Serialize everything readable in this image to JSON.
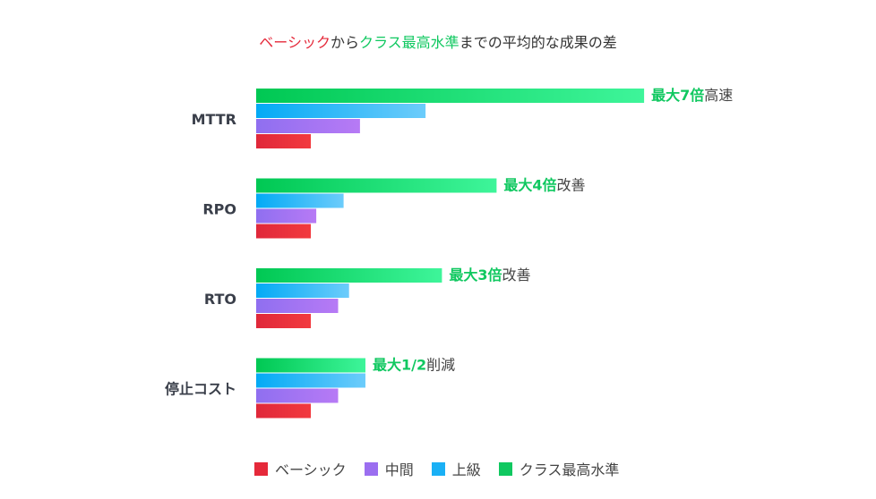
{
  "title": {
    "part1": "ベーシック",
    "part2": "から",
    "part3": "クラス最高水準",
    "part4": "までの平均的な成果の差"
  },
  "chart_data": {
    "type": "bar",
    "orientation": "horizontal",
    "categories": [
      "MTTR",
      "RPO",
      "RTO",
      "停止コスト"
    ],
    "series": [
      {
        "name": "クラス最高水準",
        "color": "#10c860",
        "values": [
          7.1,
          4.4,
          3.4,
          2.0
        ]
      },
      {
        "name": "上級",
        "color": "#1ab0f5",
        "values": [
          3.1,
          1.6,
          1.7,
          2.0
        ]
      },
      {
        "name": "中間",
        "color": "#9b6ef0",
        "values": [
          1.9,
          1.1,
          1.5,
          1.5
        ]
      },
      {
        "name": "ベーシック",
        "color": "#e5293a",
        "values": [
          1,
          1,
          1,
          1
        ]
      }
    ],
    "annotations": [
      {
        "bold": "最大7倍",
        "text": "高速"
      },
      {
        "bold": "最大4倍",
        "text": "改善"
      },
      {
        "bold": "最大3倍",
        "text": "改善"
      },
      {
        "bold": "最大1/2",
        "text": "削減"
      }
    ],
    "grid": false,
    "legend": "bottom"
  },
  "legend": [
    "ベーシック",
    "中間",
    "上級",
    "クラス最高水準"
  ]
}
